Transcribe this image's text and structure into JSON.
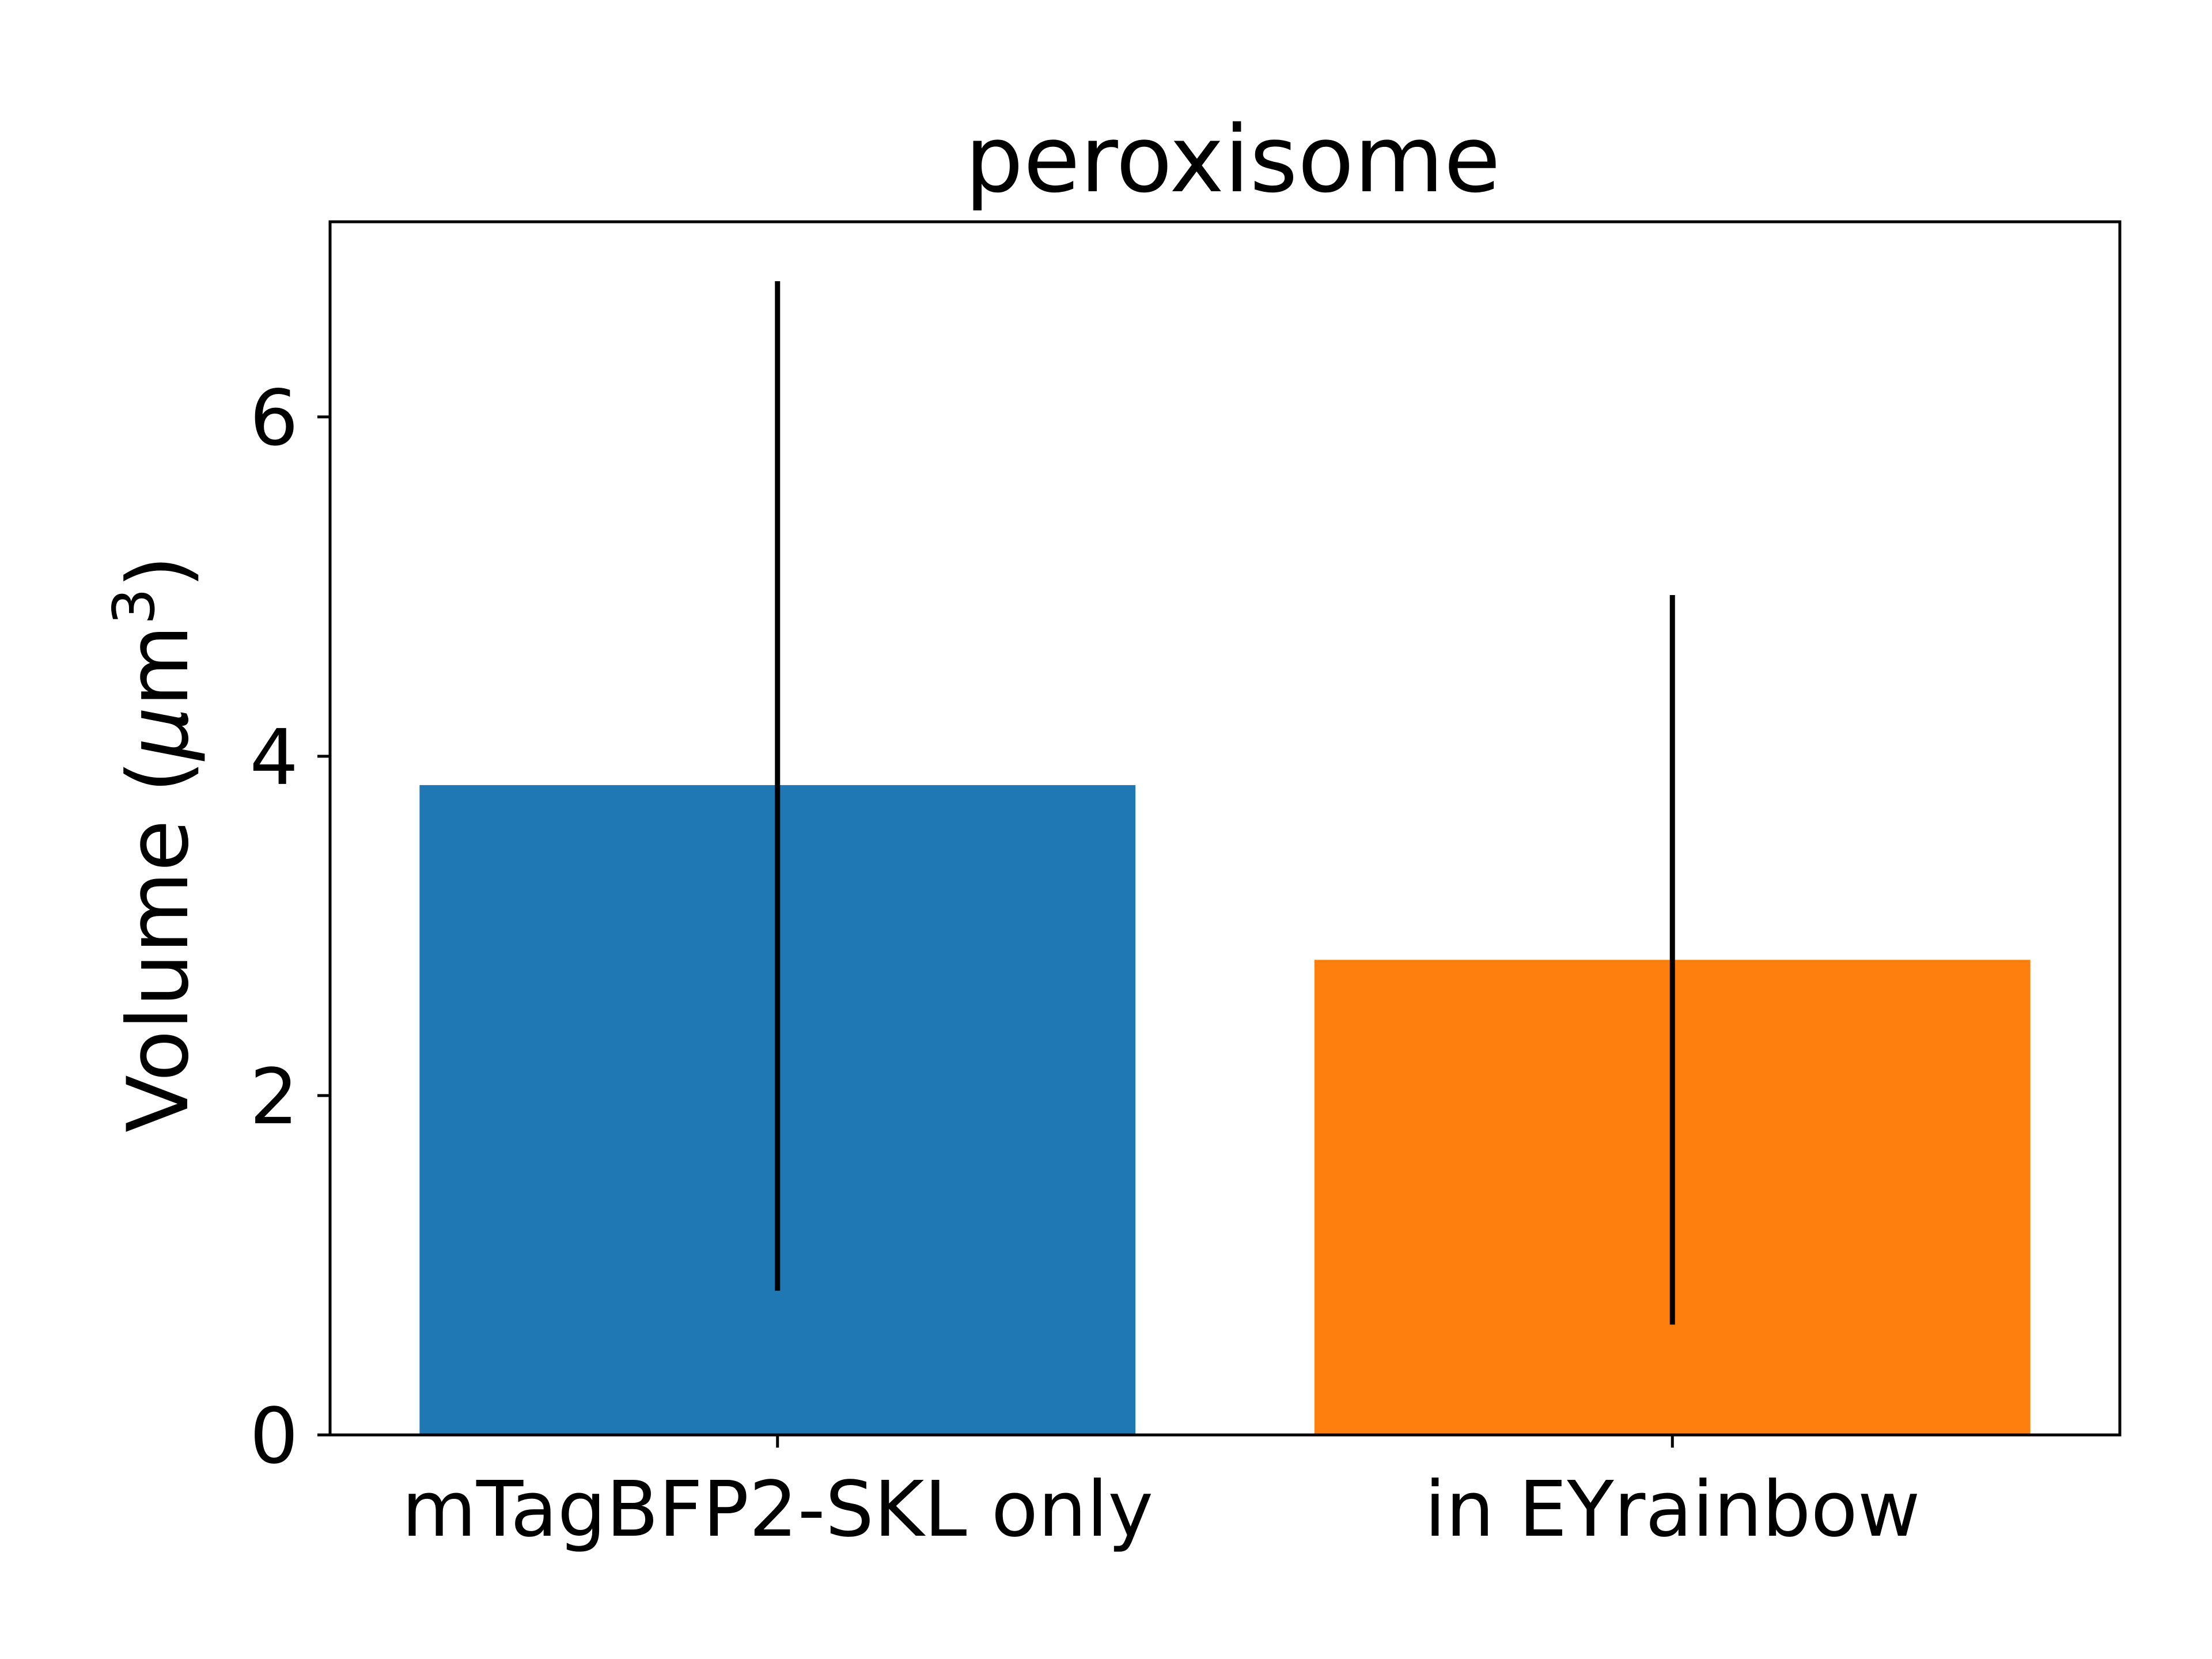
{
  "chart_data": {
    "type": "bar",
    "title": "peroxisome",
    "ylabel": {
      "prefix": "Volume (",
      "mu": "μ",
      "unit": "m",
      "sup": "3",
      "suffix": ")"
    },
    "categories": [
      "mTagBFP2-SKL only",
      "in EYrainbow"
    ],
    "values": [
      3.83,
      2.8
    ],
    "error_low": [
      0.85,
      0.65
    ],
    "error_high": [
      6.8,
      4.95
    ],
    "colors": [
      "#1f77b4",
      "#ff7f0e"
    ],
    "ylim": [
      0,
      7.15
    ],
    "yticks": [
      0,
      2,
      4,
      6
    ],
    "grid": false
  }
}
